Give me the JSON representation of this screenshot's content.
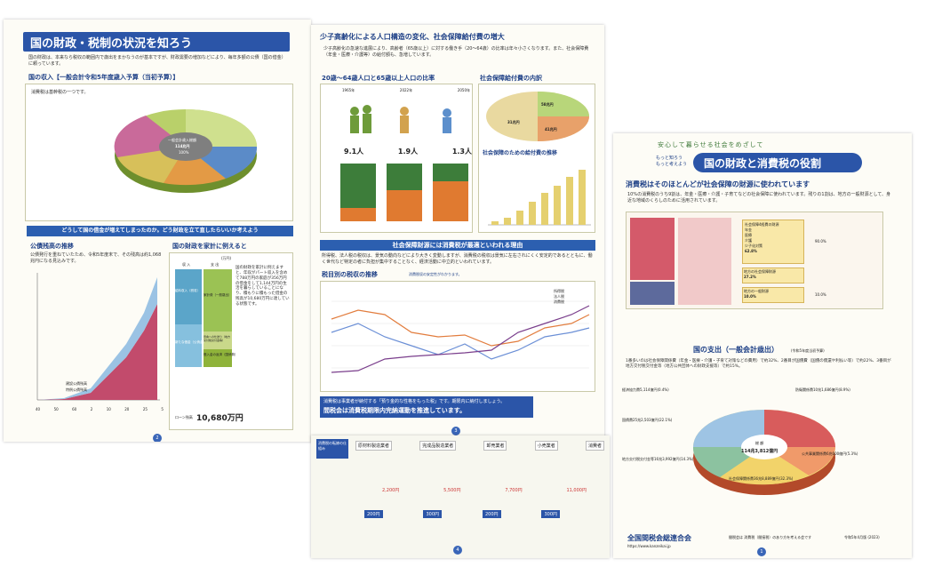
{
  "left": {
    "title": "国の財政・税制の状況を知ろう",
    "intro": "国の財政は、本来なら税収の範囲内で歳出をまかなうのが基本ですが、財政需要の増加などにより、毎年多額の公債（国の借金）に頼っています。",
    "revenue_heading": "国の収入【一般会計令和5年度歳入予算（当初予算）】",
    "tax_note": "消費税は基幹税の一つです。",
    "pie_center_label": "一般会計歳入総額",
    "pie_center_value": "114兆円",
    "pie_center_pct": "100%",
    "debt_bar": "どうして国の借金が増えてしまったのか。どう財政を立て直したらいいか考えよう",
    "bond_heading": "公債残高の推移",
    "bond_note": "公債発行を重ねていたため、令和5年度末で、その残高は約1,068兆円になる見込みです。",
    "household_heading": "国の財政を家計に例えると",
    "household_unit": "(万円)",
    "household_col_income": "収 入",
    "household_col_expense": "支 出",
    "household_items": [
      "給料収入（税収）",
      "新たな借金（公債金）",
      "家計費（一般歳出）",
      "田舎への仕送り（地方交付税交付金等）",
      "借入金の返済（国債費）"
    ],
    "household_total_label": "ローン残高",
    "household_total": "10,680万円",
    "household_text": "国の財政を家計に例えますと、年収がパート収入を含めて788万円の家庭が356万円の借金をして1,144万円の生活を暮らしていることになり、積もりに積もった借金の残高が10,680万円に達している状態です。",
    "legend_items": [
      "建設公債残高",
      "特例公債残高"
    ],
    "year_labels": [
      "40",
      "50",
      "60",
      "2",
      "10",
      "20",
      "25",
      "5"
    ],
    "page_no": "2"
  },
  "mid": {
    "heading": "少子高齢化による人口構造の変化、社会保障給付費の増大",
    "intro": "少子高齢化の急速な進展により、高齢者（65歳以上）に対する働き手（20〜64歳）の比率は年々小さくなります。また、社会保障費（年金・医療・介護等）の給付額も、急増しています。",
    "pop_heading": "20歳〜64歳人口と65歳以上人口の比率",
    "pop_years": [
      "1965年",
      "2022年",
      "2050年"
    ],
    "pop_ratios": [
      "9.1人",
      "1.9人",
      "1.3人"
    ],
    "benefit_heading": "社会保障給付費の内訳",
    "benefit_labels": [
      "58兆円",
      "41兆円",
      "31兆円"
    ],
    "benefit_chart_heading": "社会保障のための給付費の推移",
    "tax_band": "社会保障財源には消費税が最適といわれる理由",
    "tax_reason": "所得税、法人税の税収は、景気の動向などにより大きく変動しますが、消費税の税収は景気に左右されにくく安定的であるとともに、働く世代など特定の者に負担が集中することなく、経済活動に中立的といわれています。",
    "tax_trend_heading": "税目別の税収の推移",
    "tax_trend_sub": "消費税収の安定性がわかります。",
    "tax_trend_series": [
      "所得税",
      "法人税",
      "消費税"
    ],
    "footer_note": "消費税は事業者が納付する「預り金的な性格をもった税」です。期限内に納付しましょう。",
    "footer_slogan": "間税会は消費税期限内完納運動を推進しています。",
    "page_no": "3"
  },
  "right": {
    "top_note": "安心して暮らせる社会をめざして",
    "catch1": "もっと知ろう",
    "catch2": "もっと考えよう",
    "title": "国の財政と消費税の役割",
    "sub_heading": "消費税はそのほとんどが社会保障の財源に使われています",
    "sub_text": "10%の消費税のうち9割は、年金・医療・介護・子育てなどの社会保障に使われています。残りの1割は、地方の一般財源として、身近な地域のくらしのために活用されています。",
    "flow_items": [
      "社会保障4経費の財源",
      "年金",
      "医療",
      "介護",
      "少子化対策",
      "地方の社会保障財源",
      "地方の一般財源"
    ],
    "flow_pcts": [
      "62.8%",
      "27.2%",
      "10.0%"
    ],
    "side_pcts": [
      "90.0%",
      "10.0%"
    ],
    "expend_heading": "国の支出（一般会計歳出）",
    "expend_note": "(令和5年度当初予算)",
    "expend_text": "1番多いのは社会保障関係費（年金・医療・介護・子育て対策などの費用）で約32%、2番目が国債費（国債の償還や利払い等）で約22%、3番目が地方交付税交付金等（地方公共団体への財政支援等）で約15%。",
    "pie_total_label": "総 額",
    "pie_total": "114兆3,812億円",
    "pie_labels": [
      "経済協力費5,114億円(0.4%)",
      "防衛関係費10兆1,686億円(8.9%)",
      "公共事業関係費6兆600億円(5.3%)",
      "社会保障関係費36兆8,889億円(32.3%)",
      "国債費25兆2,503億円(22.1%)",
      "地方交付税交付金等16兆3,992億円(14.3%)"
    ],
    "footer_org": "全国間税会総連合会",
    "footer_url": "https://www.kanzeikai.jp",
    "footer_right": "間税会は 消費税（間接税）のあり方を考える会です",
    "footer_date": "令和5年4月版 (2023)",
    "page_no": "1"
  },
  "bottom": {
    "start_label": "消費税の転嫁の仕組み",
    "stages": [
      "原材料製造業者",
      "完成品製造業者",
      "卸売業者",
      "小売業者",
      "消費者"
    ],
    "prices": [
      "2,200円",
      "5,500円",
      "7,700円",
      "11,000円"
    ],
    "taxes": [
      "200円",
      "300円",
      "200円",
      "300円"
    ],
    "page_no": "4"
  }
}
